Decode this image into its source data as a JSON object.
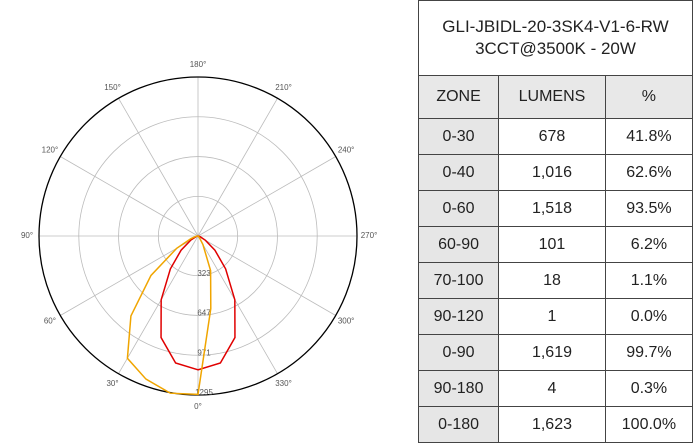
{
  "polar": {
    "type": "polar",
    "rlim": [
      0,
      1295
    ],
    "rticks": [
      323,
      647,
      971,
      1295
    ],
    "angle_labels": [
      {
        "value": 0,
        "label": "0°"
      },
      {
        "value": 30,
        "label": "30°"
      },
      {
        "value": 60,
        "label": "60°"
      },
      {
        "value": 90,
        "label": "90°"
      },
      {
        "value": 120,
        "label": "120°"
      },
      {
        "value": 150,
        "label": "150°"
      },
      {
        "value": 180,
        "label": "180°"
      },
      {
        "value": 210,
        "label": "210°"
      },
      {
        "value": 240,
        "label": "240°"
      },
      {
        "value": 270,
        "label": "270°"
      },
      {
        "value": 300,
        "label": "300°"
      },
      {
        "value": 330,
        "label": "330°"
      }
    ],
    "angles": [
      0,
      10,
      20,
      30,
      40,
      50,
      60,
      70,
      80,
      90,
      100,
      110,
      120,
      130,
      140,
      150,
      160,
      170,
      180,
      190,
      200,
      210,
      220,
      230,
      240,
      250,
      260,
      270,
      280,
      290,
      300,
      310,
      320,
      330,
      340,
      350
    ],
    "series": [
      {
        "color": "#e00000",
        "values": [
          1090,
          1050,
          880,
          600,
          350,
          180,
          70,
          20,
          5,
          0,
          0,
          0,
          0,
          0,
          0,
          0,
          0,
          0,
          0,
          0,
          0,
          0,
          0,
          0,
          0,
          0,
          0,
          0,
          5,
          20,
          70,
          180,
          350,
          600,
          880,
          1050
        ]
      },
      {
        "color": "#f0a500",
        "values": [
          1290,
          1300,
          1240,
          1150,
          850,
          500,
          200,
          60,
          20,
          5,
          0,
          0,
          0,
          0,
          0,
          0,
          0,
          0,
          0,
          0,
          0,
          0,
          0,
          0,
          0,
          0,
          0,
          0,
          0,
          0,
          0,
          5,
          20,
          80,
          300,
          600
        ]
      }
    ]
  },
  "table": {
    "title": [
      "GLI-JBIDL-20-3SK4-V1-6-RW",
      "3CCT@3500K - 20W"
    ],
    "header": [
      "ZONE",
      "LUMENS",
      "%"
    ],
    "rows": [
      [
        "0-30",
        "678",
        "41.8%"
      ],
      [
        "0-40",
        "1,016",
        "62.6%"
      ],
      [
        "0-60",
        "1,518",
        "93.5%"
      ],
      [
        "60-90",
        "101",
        "6.2%"
      ],
      [
        "70-100",
        "18",
        "1.1%"
      ],
      [
        "90-120",
        "1",
        "0.0%"
      ],
      [
        "0-90",
        "1,619",
        "99.7%"
      ],
      [
        "90-180",
        "4",
        "0.3%"
      ],
      [
        "0-180",
        "1,623",
        "100.0%"
      ]
    ]
  }
}
